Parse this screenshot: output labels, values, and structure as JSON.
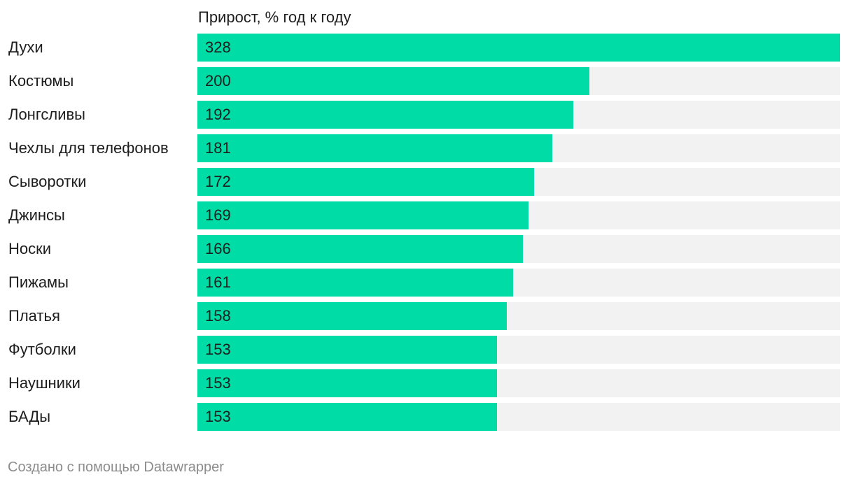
{
  "header": {
    "title": "Прирост, % год к году"
  },
  "footer": {
    "credit": "Создано с помощью Datawrapper"
  },
  "colors": {
    "bar": "#00dca5",
    "track": "#f2f2f2",
    "text": "#1d1d1d",
    "footer_text": "#8c8c8c"
  },
  "chart_data": {
    "type": "bar",
    "orientation": "horizontal",
    "title": "Прирост, % год к году",
    "categories": [
      "Духи",
      "Костюмы",
      "Лонгсливы",
      "Чехлы для телефонов",
      "Сыворотки",
      "Джинсы",
      "Носки",
      "Пижамы",
      "Платья",
      "Футболки",
      "Наушники",
      "БАДы"
    ],
    "values": [
      328,
      200,
      192,
      181,
      172,
      169,
      166,
      161,
      158,
      153,
      153,
      153
    ],
    "xlim": [
      0,
      328
    ],
    "grid": false,
    "data_labels": true
  }
}
